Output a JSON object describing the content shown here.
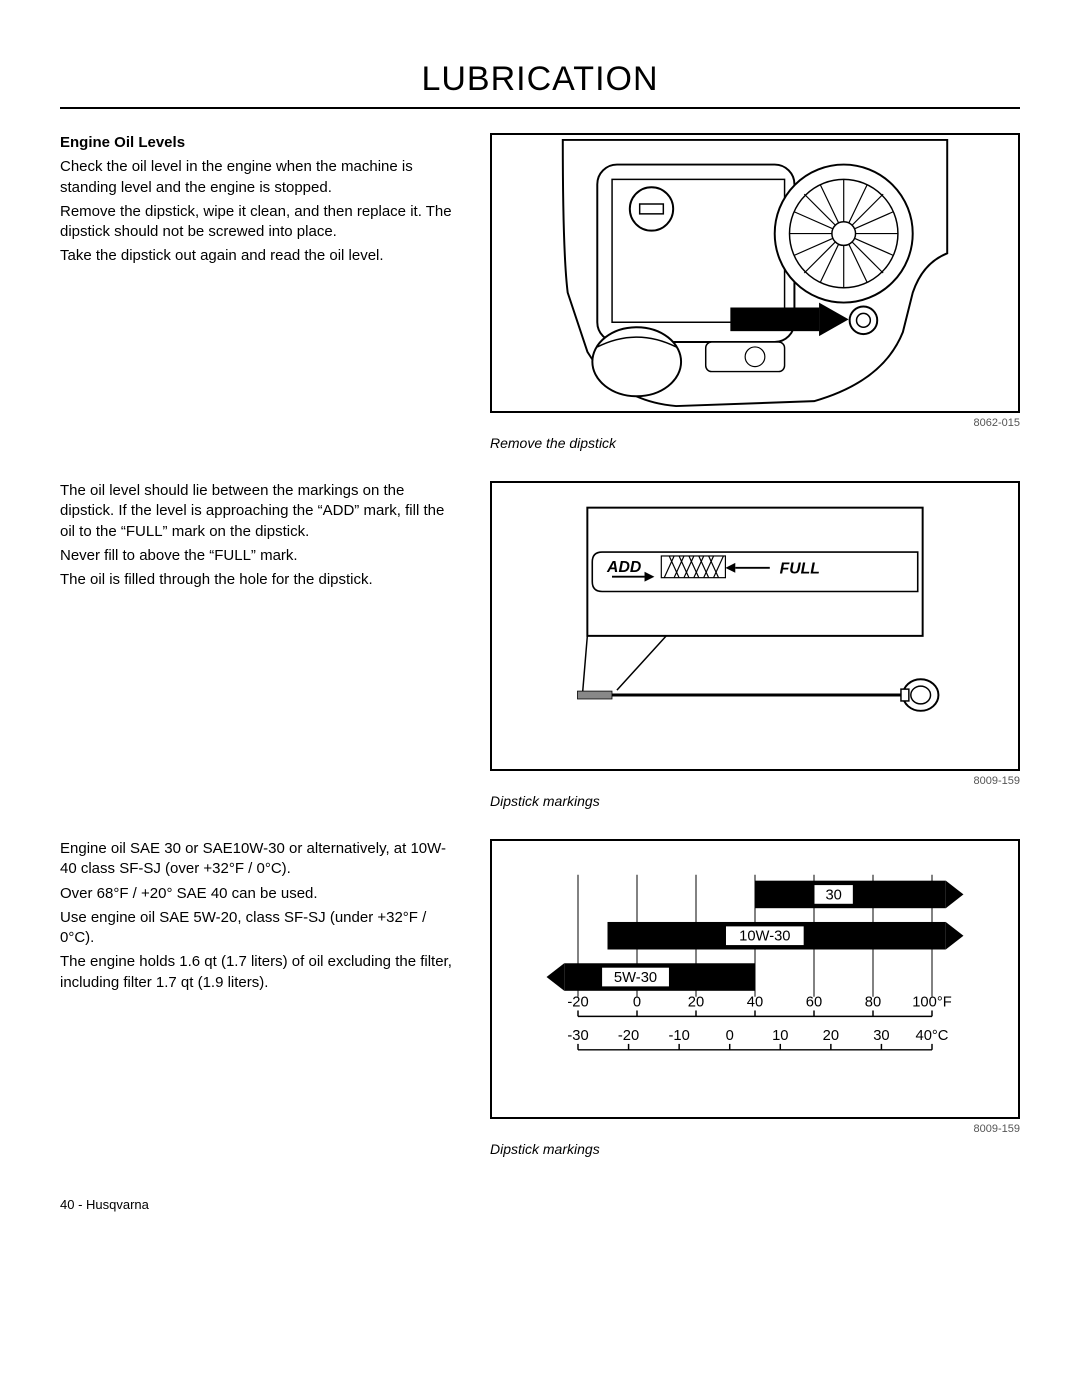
{
  "page": {
    "title": "LUBRICATION",
    "footer": "40 - Husqvarna"
  },
  "section1": {
    "heading": "Engine Oil Levels",
    "p1": "Check the oil level in the engine when the machine is standing level and the engine is stopped.",
    "p2": "Remove the dipstick, wipe it clean, and then replace it. The dipstick should not be screwed into place.",
    "p3": "Take the dipstick out again and read the oil level.",
    "fignum": "8062-015",
    "figcap": "Remove the dipstick"
  },
  "section2": {
    "p1": "The oil level should lie between the markings on the dipstick. If the level is approaching the “ADD” mark, fill the oil to the “FULL” mark on the dipstick.",
    "p2": "Never fill to above the “FULL” mark.",
    "p3": "The oil is filled through the hole for the dipstick.",
    "add_label": "ADD",
    "full_label": "FULL",
    "fignum": "8009-159",
    "figcap": "Dipstick markings"
  },
  "section3": {
    "p1": "Engine oil SAE 30 or SAE10W-30 or alternatively,  at 10W-40 class SF-SJ (over +32°F / 0°C).",
    "p2": "Over 68°F / +20° SAE 40 can be used.",
    "p3": "Use engine oil SAE 5W-20, class SF-SJ (under +32°F / 0°C).",
    "p4": "The engine holds 1.6 qt (1.7 liters) of oil excluding the filter, including filter 1.7 qt (1.9 liters).",
    "fignum": "8009-159",
    "figcap": "Dipstick markings"
  },
  "oilchart": {
    "bars": [
      {
        "label": "30",
        "startF": 40,
        "endF": 110,
        "y": 0
      },
      {
        "label": "10W-30",
        "startF": -10,
        "endF": 110,
        "y": 1
      },
      {
        "label": "5W-30",
        "startF": -30,
        "endF": 40,
        "y": 2
      }
    ],
    "barHeight": 28,
    "barGap": 14,
    "barColor": "#000000",
    "labelColor": "#ffffff",
    "axisF": {
      "min": -20,
      "max": 100,
      "step": 20,
      "unit": "°F"
    },
    "axisC": {
      "min": -30,
      "max": 40,
      "step": 10,
      "unit": "°C"
    },
    "plotFmin": -30,
    "plotFmax": 110,
    "gridFvalues": [
      -20,
      0,
      20,
      40,
      60,
      80,
      100
    ]
  }
}
